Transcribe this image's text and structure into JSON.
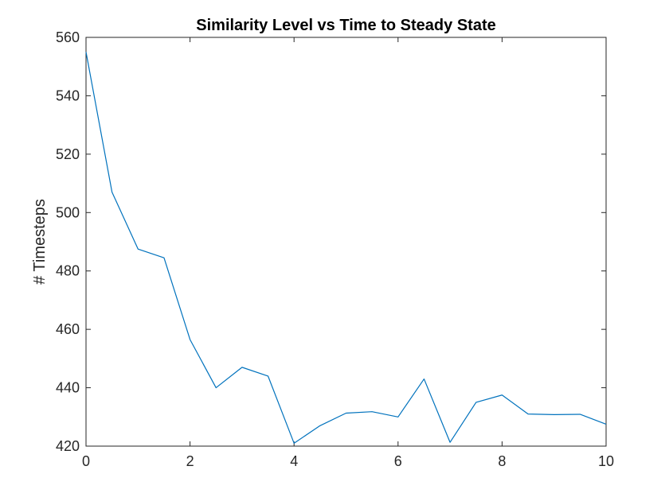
{
  "chart_data": {
    "type": "line",
    "title": "Similarity Level vs Time to Steady State",
    "xlabel": "",
    "ylabel": "# Timesteps",
    "xlim": [
      0,
      10
    ],
    "ylim": [
      420,
      560
    ],
    "xticks": [
      0,
      2,
      4,
      6,
      8,
      10
    ],
    "yticks": [
      420,
      440,
      460,
      480,
      500,
      520,
      540,
      560
    ],
    "grid": false,
    "series": [
      {
        "color": "#0072bd",
        "x": [
          0,
          0.5,
          1,
          1.5,
          2,
          2.5,
          3,
          3.5,
          4,
          4.5,
          5,
          5.5,
          6,
          6.5,
          7,
          7.5,
          8,
          8.5,
          9,
          9.5,
          10
        ],
        "y": [
          555,
          507,
          487.5,
          484.5,
          456.5,
          440,
          447,
          444,
          421,
          427,
          431.3,
          431.8,
          430,
          443,
          421.3,
          435,
          437.5,
          431,
          430.8,
          430.9,
          427.5
        ]
      }
    ]
  }
}
